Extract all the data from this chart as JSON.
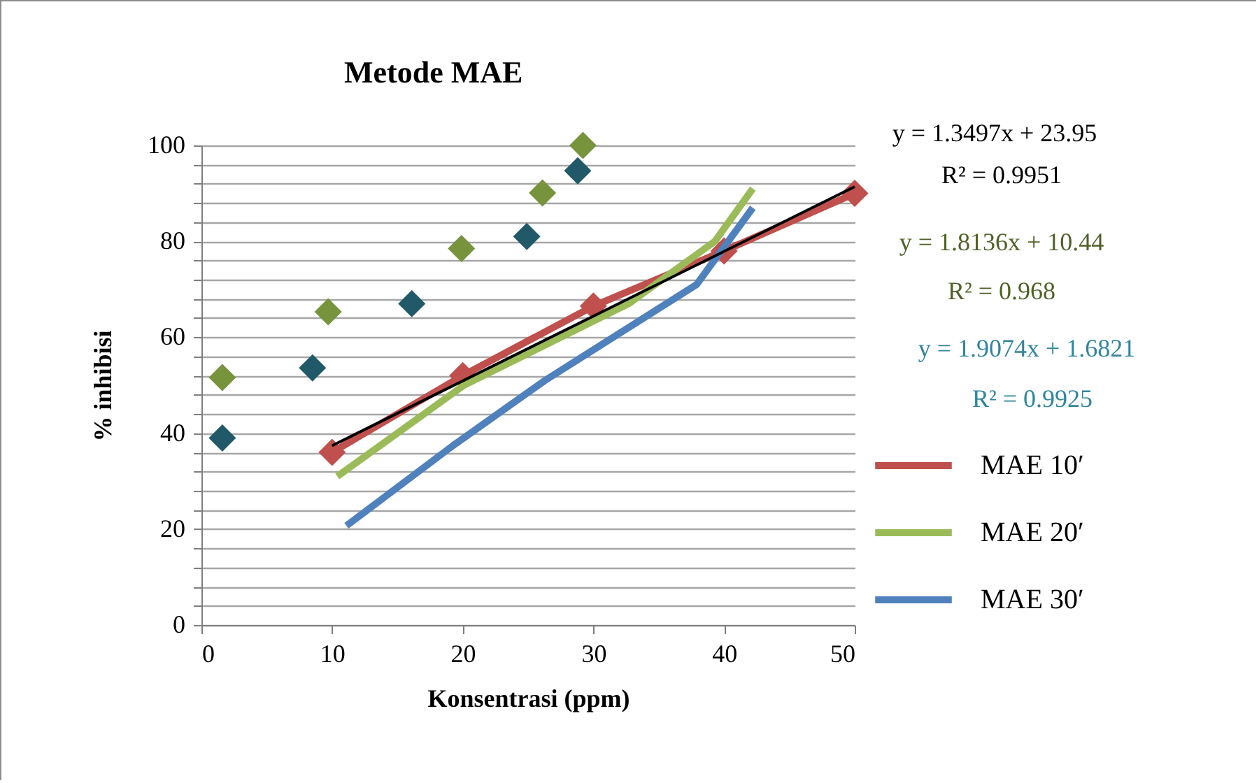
{
  "chart_data": {
    "type": "line",
    "title": "Metode MAE",
    "xlabel": "Konsentrasi (ppm)",
    "ylabel": "% inhibisi",
    "xlim": [
      0,
      50
    ],
    "xticks": [
      0,
      10,
      20,
      30,
      40,
      50
    ],
    "ylim": [
      0,
      100
    ],
    "yticks": [
      0,
      {
        "value": 4,
        "label": null
      },
      {
        "value": 8,
        "label": null
      },
      {
        "value": 12,
        "label": null
      },
      {
        "value": 16,
        "label": null
      },
      20,
      {
        "value": 24,
        "label": null
      },
      {
        "value": 28,
        "label": null
      },
      {
        "value": 32,
        "label": null
      },
      {
        "value": 36,
        "label": null
      },
      40,
      {
        "value": 44,
        "label": null
      },
      {
        "value": 48,
        "label": null
      },
      {
        "value": 52,
        "label": null
      },
      {
        "value": 56,
        "label": null
      },
      60,
      {
        "value": 64,
        "label": null
      },
      {
        "value": 68,
        "label": null
      },
      {
        "value": 72,
        "label": null
      },
      {
        "value": 76,
        "label": null
      },
      80,
      {
        "value": 84,
        "label": null
      },
      {
        "value": 88,
        "label": null
      },
      {
        "value": 92,
        "label": null
      },
      {
        "value": 96,
        "label": null
      },
      100
    ],
    "grid": "y",
    "legend": "right",
    "series": [
      {
        "name": "MAE 10′",
        "marker": "diamond",
        "color": "#c0504d",
        "x": [
          10,
          20,
          30,
          40,
          50
        ],
        "values": [
          36,
          52,
          66.5,
          78,
          90
        ]
      },
      {
        "name": "MAE 20′",
        "marker": "none",
        "color": "#9bbb59",
        "x": [
          10.4,
          20.1,
          32.7,
          39.3,
          42.2
        ],
        "values": [
          31,
          50,
          67,
          80,
          91
        ]
      },
      {
        "name": "MAE 30′",
        "marker": "none",
        "color": "#4f81bd",
        "x": [
          11.1,
          19.2,
          26.3,
          37.9,
          42.2
        ],
        "values": [
          20.7,
          37.3,
          51,
          71,
          87
        ]
      },
      {
        "marker": "none",
        "color": "#000000",
        "x": [
          10,
          50
        ],
        "values": [
          37.4,
          91.4
        ]
      },
      {
        "type": "scatter",
        "marker": "diamond",
        "color": "#77933c",
        "x": [
          1.6,
          9.7,
          19.9,
          26.1,
          29.2
        ],
        "values": [
          51.6,
          65.3,
          78.5,
          90.1,
          100
        ]
      },
      {
        "type": "scatter",
        "marker": "diamond",
        "color": "#215968",
        "x": [
          1.6,
          8.5,
          16.1,
          24.9,
          28.8
        ],
        "values": [
          39,
          53.6,
          67,
          81,
          94.7
        ]
      }
    ],
    "annotations": [
      "y = 1.3497x + 23.95",
      "R² = 0.9951",
      "y = 1.8136x + 10.44",
      "R² = 0.968",
      "y = 1.9074x + 1.6821",
      "R² = 0.9925"
    ]
  }
}
